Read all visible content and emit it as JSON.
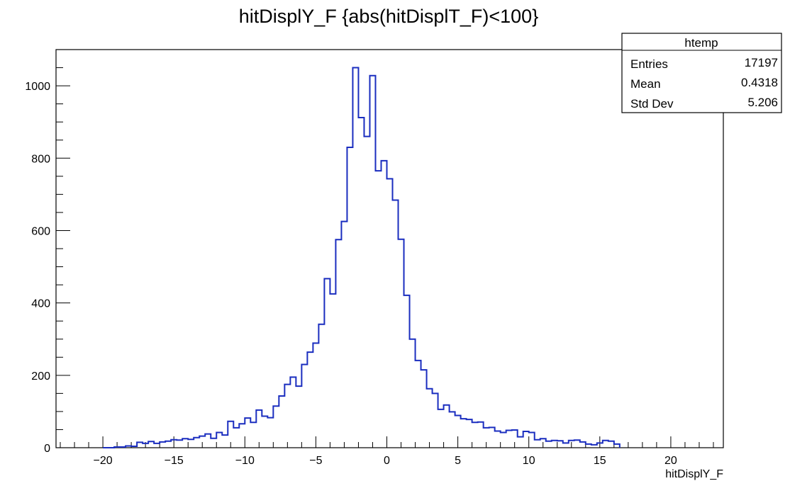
{
  "chart_data": {
    "type": "bar",
    "title": "hitDisplY_F {abs(hitDisplT_F)<100}",
    "xlabel": "hitDisplY_F",
    "ylabel": "",
    "xlim": [
      -23.3,
      23.7
    ],
    "ylim": [
      0,
      1100
    ],
    "x_ticks": [
      -20,
      -15,
      -10,
      -5,
      0,
      5,
      10,
      15,
      20
    ],
    "y_ticks": [
      0,
      200,
      400,
      600,
      800,
      1000
    ],
    "grid": false,
    "line_color": "#1a2dbf",
    "bin_edges_start": -20.0,
    "bin_width": 0.4,
    "values": [
      0,
      0,
      2,
      2,
      5,
      4,
      15,
      12,
      17,
      12,
      16,
      18,
      22,
      21,
      25,
      23,
      28,
      32,
      38,
      26,
      42,
      35,
      73,
      55,
      66,
      82,
      70,
      104,
      87,
      83,
      115,
      143,
      175,
      195,
      170,
      230,
      264,
      289,
      341,
      467,
      425,
      575,
      625,
      830,
      1050,
      912,
      860,
      1028,
      765,
      793,
      743,
      684,
      576,
      421,
      300,
      241,
      215,
      163,
      150,
      106,
      118,
      99,
      89,
      80,
      78,
      70,
      71,
      55,
      56,
      46,
      42,
      48,
      49,
      30,
      45,
      42,
      22,
      25,
      18,
      20,
      19,
      13,
      20,
      21,
      16,
      10,
      8,
      13,
      20,
      18,
      10
    ],
    "stats_box": {
      "name": "htemp",
      "rows": [
        {
          "label": "Entries",
          "value": "17197"
        },
        {
          "label": "Mean",
          "value": "0.4318"
        },
        {
          "label": "Std Dev",
          "value": "5.206"
        }
      ]
    }
  }
}
